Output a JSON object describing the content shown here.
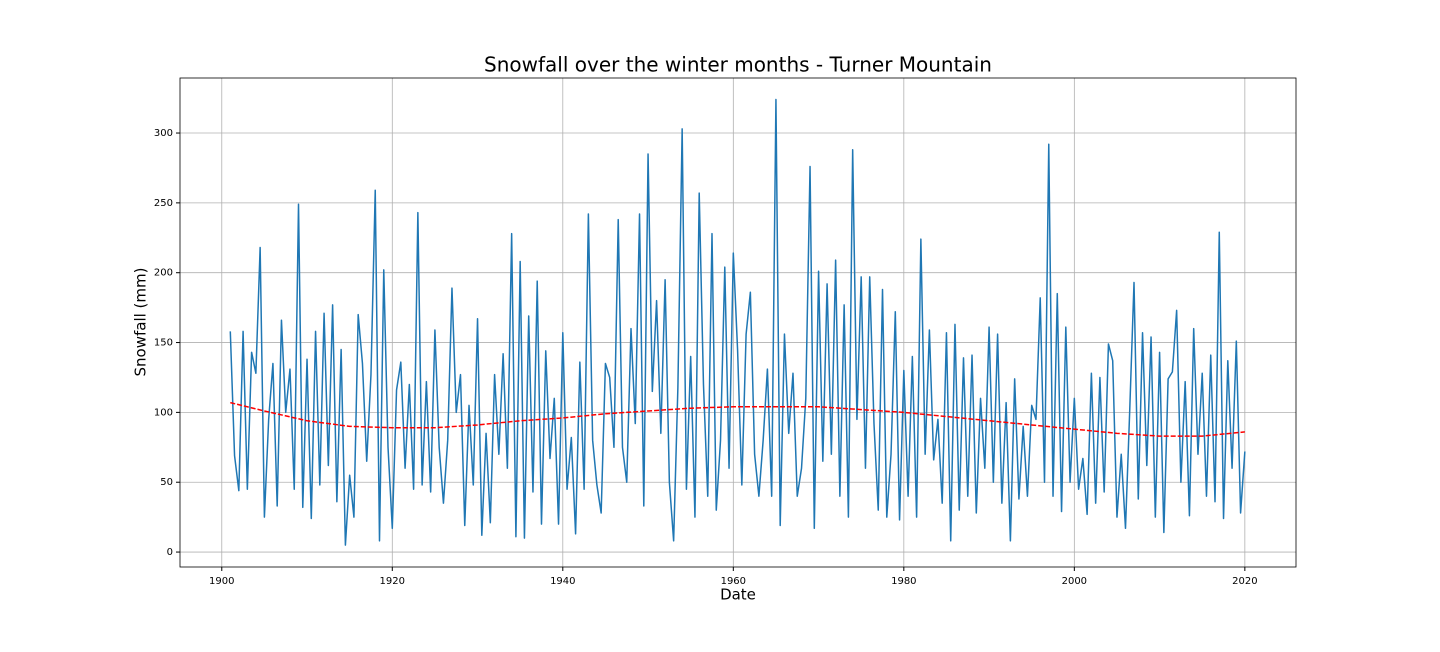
{
  "chart_data": {
    "type": "line",
    "title": "Snowfall over the winter months - Turner Mountain",
    "x_label": "Date",
    "y_label": "Snowfall (mm)",
    "series": [
      {
        "color": "#1f77b4",
        "linestyle": "solid",
        "x": [
          1901,
          1901.5,
          1902,
          1902.5,
          1903,
          1903.5,
          1904,
          1904.5,
          1905,
          1905.5,
          1906,
          1906.5,
          1907,
          1907.5,
          1908,
          1908.5,
          1909,
          1909.5,
          1910,
          1910.5,
          1911,
          1911.5,
          1912,
          1912.5,
          1913,
          1913.5,
          1914,
          1914.5,
          1915,
          1915.5,
          1916,
          1916.5,
          1917,
          1917.5,
          1918,
          1918.5,
          1919,
          1919.5,
          1920,
          1920.5,
          1921,
          1921.5,
          1922,
          1922.5,
          1923,
          1923.5,
          1924,
          1924.5,
          1925,
          1925.5,
          1926,
          1926.5,
          1927,
          1927.5,
          1928,
          1928.5,
          1929,
          1929.5,
          1930,
          1930.5,
          1931,
          1931.5,
          1932,
          1932.5,
          1933,
          1933.5,
          1934,
          1934.5,
          1935,
          1935.5,
          1936,
          1936.5,
          1937,
          1937.5,
          1938,
          1938.5,
          1939,
          1939.5,
          1940,
          1940.5,
          1941,
          1941.5,
          1942,
          1942.5,
          1943,
          1943.5,
          1944,
          1944.5,
          1945,
          1945.5,
          1946,
          1946.5,
          1947,
          1947.5,
          1948,
          1948.5,
          1949,
          1949.5,
          1950,
          1950.5,
          1951,
          1951.5,
          1952,
          1952.5,
          1953,
          1953.5,
          1954,
          1954.5,
          1955,
          1955.5,
          1956,
          1956.5,
          1957,
          1957.5,
          1958,
          1958.5,
          1959,
          1959.5,
          1960,
          1960.5,
          1961,
          1961.5,
          1962,
          1962.5,
          1963,
          1963.5,
          1964,
          1964.5,
          1965,
          1965.5,
          1966,
          1966.5,
          1967,
          1967.5,
          1968,
          1968.5,
          1969,
          1969.5,
          1970,
          1970.5,
          1971,
          1971.5,
          1972,
          1972.5,
          1973,
          1973.5,
          1974,
          1974.5,
          1975,
          1975.5,
          1976,
          1976.5,
          1977,
          1977.5,
          1978,
          1978.5,
          1979,
          1979.5,
          1980,
          1980.5,
          1981,
          1981.5,
          1982,
          1982.5,
          1983,
          1983.5,
          1984,
          1984.5,
          1985,
          1985.5,
          1986,
          1986.5,
          1987,
          1987.5,
          1988,
          1988.5,
          1989,
          1989.5,
          1990,
          1990.5,
          1991,
          1991.5,
          1992,
          1992.5,
          1993,
          1993.5,
          1994,
          1994.5,
          1995,
          1995.5,
          1996,
          1996.5,
          1997,
          1997.5,
          1998,
          1998.5,
          1999,
          1999.5,
          2000,
          2000.5,
          2001,
          2001.5,
          2002,
          2002.5,
          2003,
          2003.5,
          2004,
          2004.5,
          2005,
          2005.5,
          2006,
          2006.5,
          2007,
          2007.5,
          2008,
          2008.5,
          2009,
          2009.5,
          2010,
          2010.5,
          2011,
          2011.5,
          2012,
          2012.5,
          2013,
          2013.5,
          2014,
          2014.5,
          2015,
          2015.5,
          2016,
          2016.5,
          2017,
          2017.5,
          2018,
          2018.5,
          2019,
          2019.5,
          2020
        ],
        "values": [
          158,
          69,
          44,
          158,
          45,
          143,
          128,
          218,
          25,
          95,
          135,
          33,
          166,
          100,
          131,
          45,
          249,
          32,
          138,
          24,
          158,
          48,
          171,
          62,
          177,
          36,
          145,
          5,
          55,
          25,
          170,
          135,
          65,
          127,
          259,
          8,
          202,
          75,
          17,
          116,
          136,
          60,
          120,
          45,
          243,
          48,
          122,
          43,
          159,
          75,
          35,
          80,
          189,
          100,
          127,
          19,
          105,
          48,
          167,
          12,
          85,
          21,
          127,
          70,
          142,
          60,
          228,
          11,
          208,
          10,
          169,
          43,
          194,
          20,
          144,
          67,
          110,
          20,
          157,
          45,
          82,
          13,
          136,
          45,
          242,
          80,
          48,
          28,
          135,
          125,
          75,
          238,
          75,
          50,
          160,
          92,
          242,
          33,
          285,
          115,
          180,
          85,
          195,
          50,
          8,
          118,
          303,
          45,
          140,
          25,
          257,
          120,
          40,
          228,
          30,
          80,
          204,
          60,
          214,
          145,
          48,
          156,
          186,
          70,
          40,
          80,
          131,
          40,
          324,
          19,
          156,
          85,
          128,
          40,
          60,
          110,
          276,
          17,
          201,
          65,
          192,
          70,
          209,
          40,
          177,
          25,
          288,
          95,
          197,
          60,
          197,
          92,
          30,
          188,
          25,
          70,
          172,
          23,
          130,
          40,
          140,
          25,
          224,
          70,
          159,
          66,
          95,
          35,
          157,
          8,
          163,
          30,
          139,
          40,
          141,
          28,
          110,
          60,
          161,
          50,
          156,
          35,
          107,
          8,
          124,
          38,
          90,
          40,
          105,
          95,
          182,
          50,
          292,
          40,
          185,
          29,
          161,
          50,
          110,
          45,
          67,
          27,
          128,
          35,
          125,
          43,
          149,
          137,
          25,
          70,
          17,
          102,
          193,
          38,
          157,
          62,
          154,
          25,
          143,
          14,
          124,
          129,
          173,
          50,
          122,
          26,
          160,
          70,
          128,
          40,
          141,
          36,
          229,
          24,
          137,
          60,
          151,
          28,
          72
        ]
      },
      {
        "color": "#ff0000",
        "linestyle": "dashed",
        "x": [
          1901,
          1905,
          1910,
          1915,
          1920,
          1925,
          1930,
          1935,
          1940,
          1945,
          1950,
          1955,
          1960,
          1965,
          1970,
          1975,
          1980,
          1985,
          1990,
          1995,
          2000,
          2005,
          2010,
          2015,
          2020
        ],
        "values": [
          107,
          101,
          94,
          90,
          89,
          89,
          91,
          94,
          96,
          99,
          101,
          103,
          104,
          104,
          104,
          102,
          100,
          97,
          94,
          91,
          88,
          85,
          83,
          83,
          86
        ]
      }
    ],
    "xlim": [
      1895.1,
      2026.0
    ],
    "xticks": [
      1900,
      1920,
      1940,
      1960,
      1980,
      2000,
      2020
    ],
    "ylim": [
      -10.7,
      339.4
    ],
    "yticks": [
      0,
      50,
      100,
      150,
      200,
      250,
      300
    ],
    "grid": true
  }
}
